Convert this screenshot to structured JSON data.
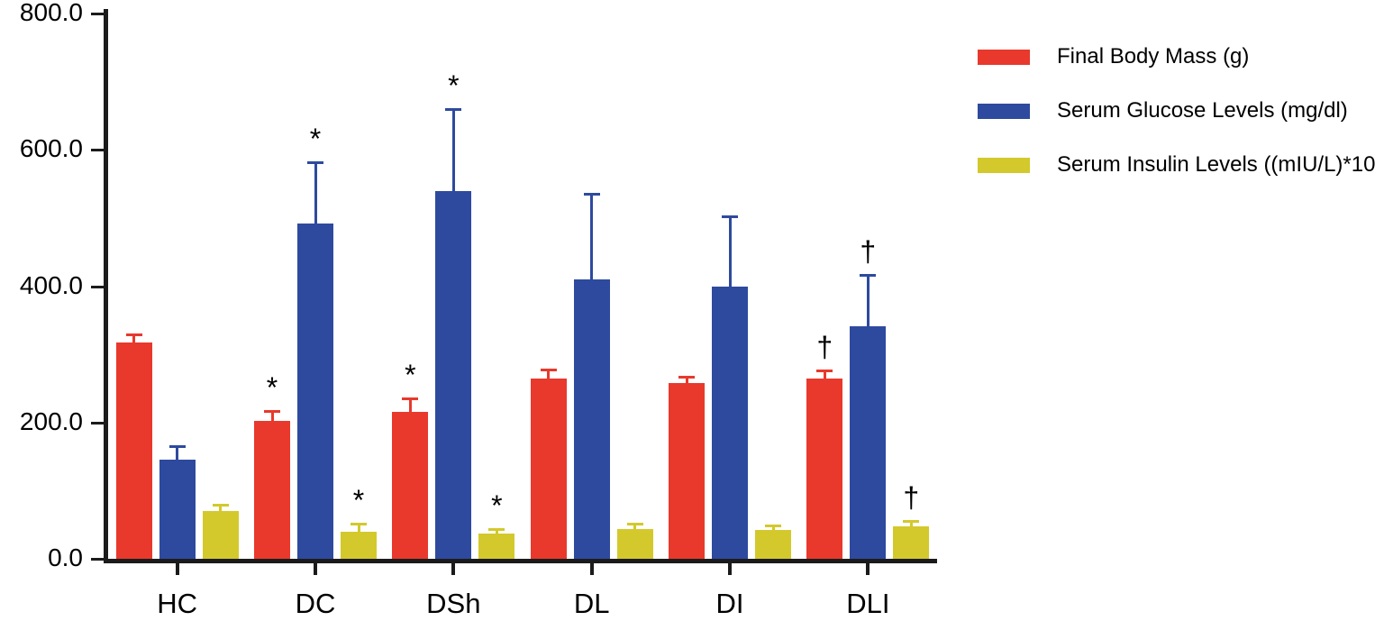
{
  "chart_data": {
    "type": "bar",
    "title": "",
    "xlabel": "",
    "ylabel": "",
    "grid": false,
    "legend_position": "top-right",
    "ylim": [
      0,
      800
    ],
    "yticks": [
      0,
      200,
      400,
      600,
      800
    ],
    "ytick_labels": [
      "0.0",
      "200.0",
      "400.0",
      "600.0",
      "800.0"
    ],
    "categories": [
      "HC",
      "DC",
      "DSh",
      "DL",
      "DI",
      "DLI"
    ],
    "series": [
      {
        "name": "Final Body Mass (g)",
        "color": "#e8392c",
        "values": [
          317,
          202,
          216,
          264,
          258,
          264
        ],
        "errors": [
          12,
          15,
          20,
          14,
          9,
          12
        ],
        "annotations": [
          "",
          "*",
          "*",
          "",
          "",
          "†"
        ]
      },
      {
        "name": "Serum Glucose Levels (mg/dl)",
        "color": "#2e4a9e",
        "values": [
          145,
          492,
          540,
          410,
          400,
          341
        ],
        "errors": [
          20,
          90,
          120,
          125,
          103,
          76
        ],
        "annotations": [
          "",
          "*",
          "*",
          "",
          "",
          "†"
        ]
      },
      {
        "name": " Serum Insulin Levels ((mIU/L)*10",
        "color": "#d3c92c",
        "values": [
          70,
          40,
          37,
          44,
          42,
          48
        ],
        "errors": [
          10,
          12,
          7,
          7,
          7,
          8
        ],
        "annotations": [
          "",
          "*",
          "*",
          "",
          "",
          "†"
        ]
      }
    ]
  }
}
